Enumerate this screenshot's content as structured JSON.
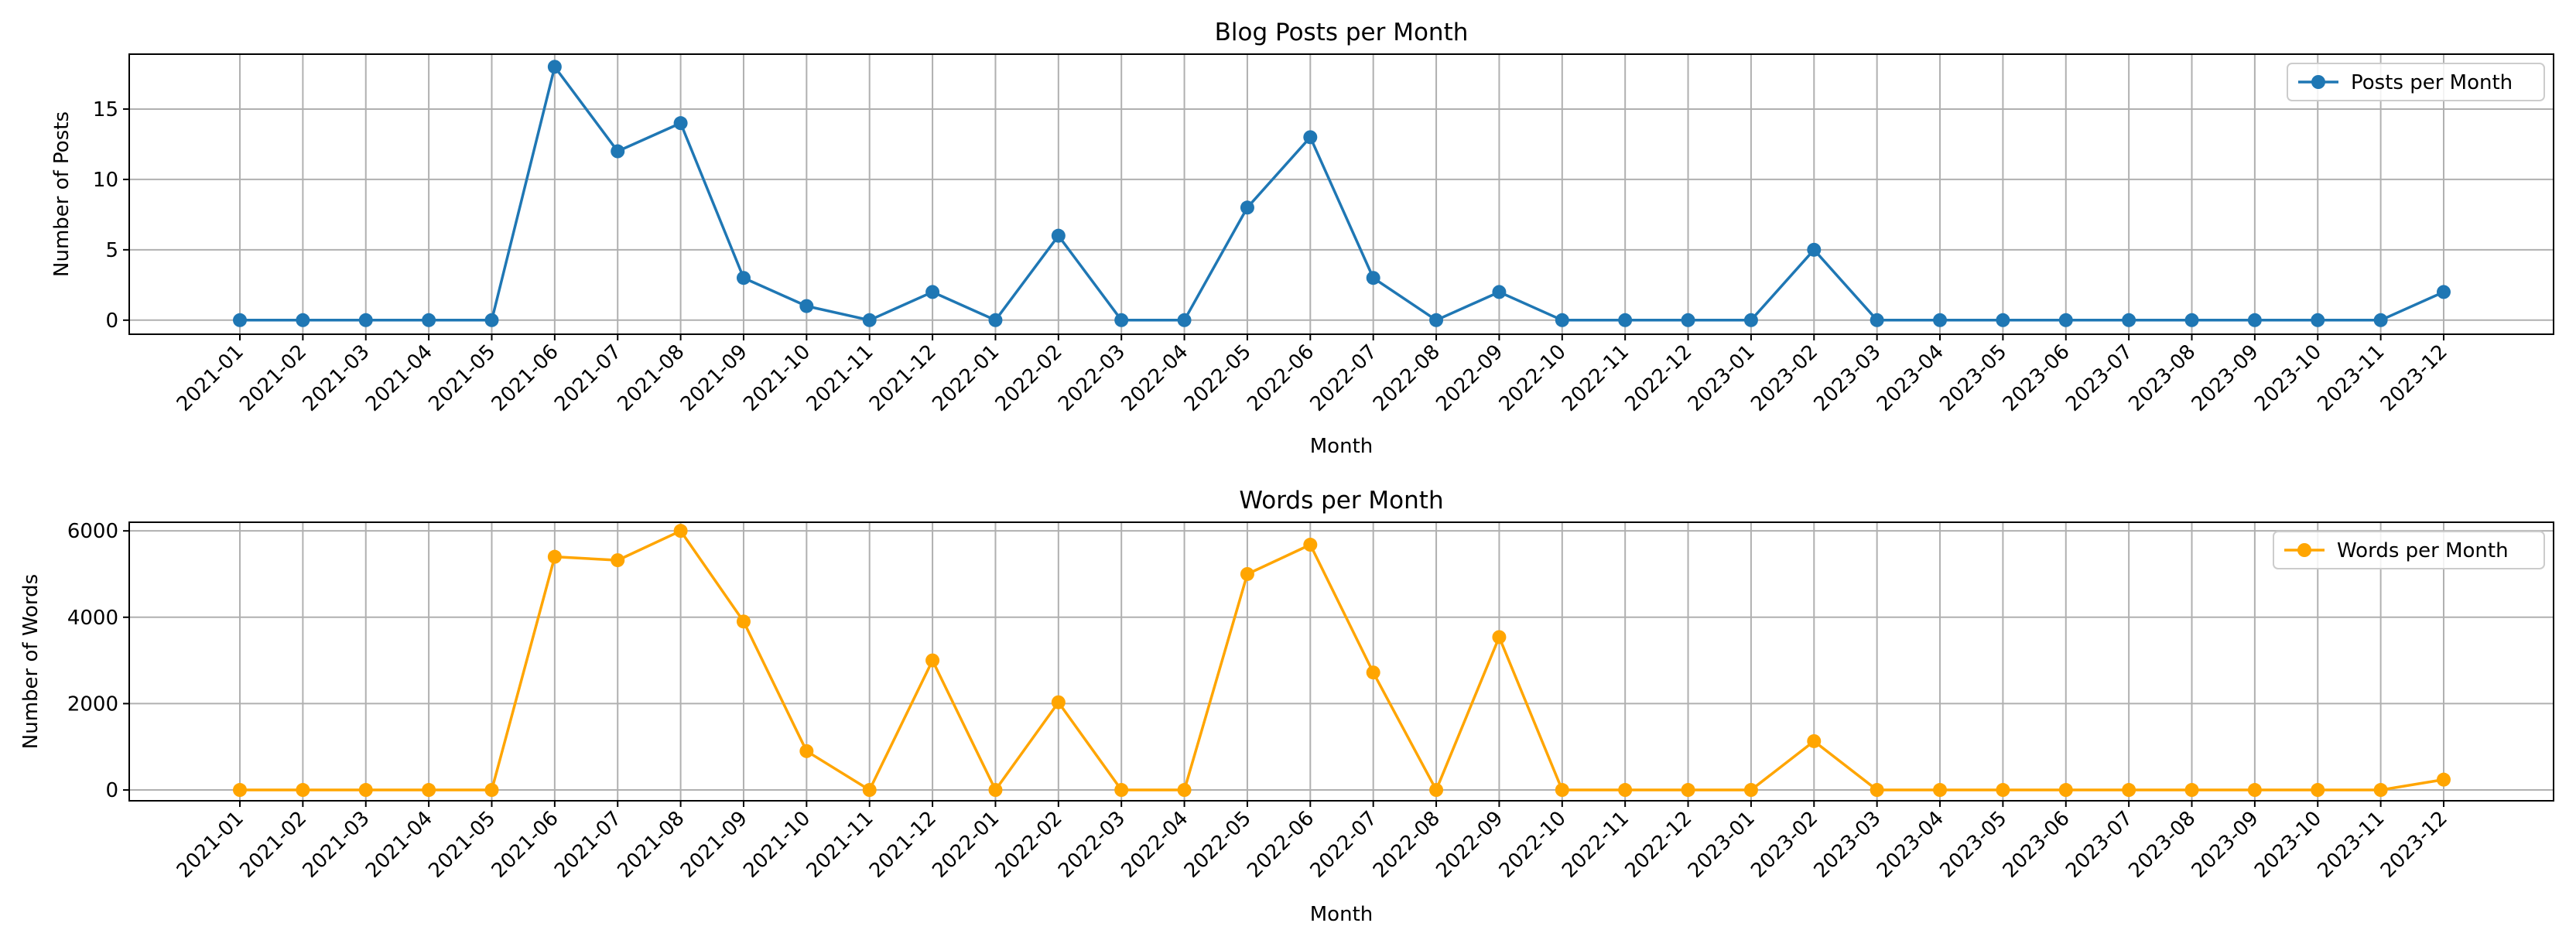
{
  "chart_data": [
    {
      "type": "line",
      "title": "Blog Posts per Month",
      "xlabel": "Month",
      "ylabel": "Number of Posts",
      "ylim": [
        -1,
        18.9
      ],
      "yticks": [
        0,
        5,
        10,
        15
      ],
      "grid": true,
      "legend_position": "top-right",
      "categories": [
        "2021-01",
        "2021-02",
        "2021-03",
        "2021-04",
        "2021-05",
        "2021-06",
        "2021-07",
        "2021-08",
        "2021-09",
        "2021-10",
        "2021-11",
        "2021-12",
        "2022-01",
        "2022-02",
        "2022-03",
        "2022-04",
        "2022-05",
        "2022-06",
        "2022-07",
        "2022-08",
        "2022-09",
        "2022-10",
        "2022-11",
        "2022-12",
        "2023-01",
        "2023-02",
        "2023-03",
        "2023-04",
        "2023-05",
        "2023-06",
        "2023-07",
        "2023-08",
        "2023-09",
        "2023-10",
        "2023-11",
        "2023-12"
      ],
      "series": [
        {
          "name": "Posts per Month",
          "color": "#1f77b4",
          "values": [
            0,
            0,
            0,
            0,
            0,
            18,
            12,
            14,
            3,
            1,
            0,
            2,
            0,
            6,
            0,
            0,
            8,
            13,
            3,
            0,
            2,
            0,
            0,
            0,
            0,
            5,
            0,
            0,
            0,
            0,
            0,
            0,
            0,
            0,
            0,
            2
          ]
        }
      ]
    },
    {
      "type": "line",
      "title": "Words per Month",
      "xlabel": "Month",
      "ylabel": "Number of Words",
      "ylim": [
        -250,
        6200
      ],
      "yticks": [
        0,
        2000,
        4000,
        6000
      ],
      "grid": true,
      "legend_position": "top-right",
      "categories": [
        "2021-01",
        "2021-02",
        "2021-03",
        "2021-04",
        "2021-05",
        "2021-06",
        "2021-07",
        "2021-08",
        "2021-09",
        "2021-10",
        "2021-11",
        "2021-12",
        "2022-01",
        "2022-02",
        "2022-03",
        "2022-04",
        "2022-05",
        "2022-06",
        "2022-07",
        "2022-08",
        "2022-09",
        "2022-10",
        "2022-11",
        "2022-12",
        "2023-01",
        "2023-02",
        "2023-03",
        "2023-04",
        "2023-05",
        "2023-06",
        "2023-07",
        "2023-08",
        "2023-09",
        "2023-10",
        "2023-11",
        "2023-12"
      ],
      "series": [
        {
          "name": "Words per Month",
          "color": "#ffa500",
          "values": [
            0,
            0,
            0,
            0,
            0,
            5400,
            5320,
            6000,
            3900,
            900,
            0,
            3000,
            0,
            2030,
            0,
            0,
            5000,
            5680,
            2720,
            0,
            3540,
            0,
            0,
            0,
            0,
            1130,
            0,
            0,
            0,
            0,
            0,
            0,
            0,
            0,
            0,
            240
          ]
        }
      ]
    }
  ]
}
